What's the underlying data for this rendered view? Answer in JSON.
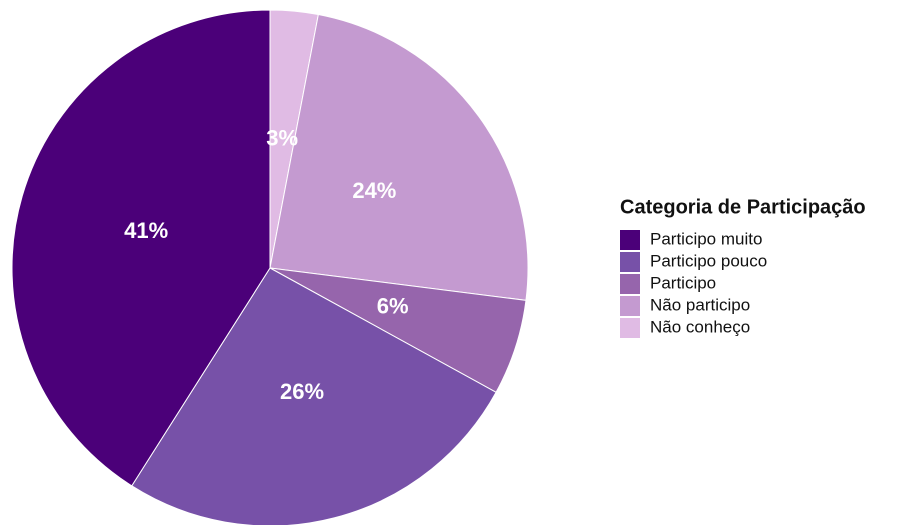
{
  "chart_data": {
    "type": "pie",
    "legend_title": "Categoria de Participação",
    "categories": [
      "Participo muito",
      "Participo pouco",
      "Participo",
      "Não participo",
      "Não conheço"
    ],
    "values": [
      41,
      26,
      6,
      24,
      3
    ],
    "value_labels": [
      "41%",
      "26%",
      "6%",
      "24%",
      "3%"
    ],
    "colors": [
      "#4b0079",
      "#7751a8",
      "#9665ac",
      "#c49ad0",
      "#e0bbe4"
    ],
    "legend": "right"
  }
}
